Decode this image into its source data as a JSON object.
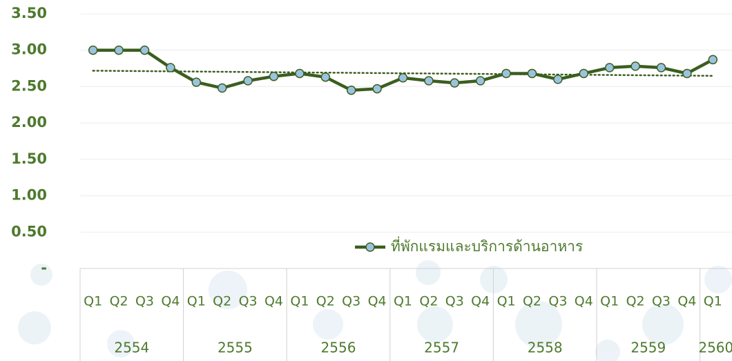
{
  "chart_data": {
    "type": "line",
    "groups": [
      {
        "label": "2554",
        "categories": [
          "Q1",
          "Q2",
          "Q3",
          "Q4"
        ]
      },
      {
        "label": "2555",
        "categories": [
          "Q1",
          "Q2",
          "Q3",
          "Q4"
        ]
      },
      {
        "label": "2556",
        "categories": [
          "Q1",
          "Q2",
          "Q3",
          "Q4"
        ]
      },
      {
        "label": "2557",
        "categories": [
          "Q1",
          "Q2",
          "Q3",
          "Q4"
        ]
      },
      {
        "label": "2558",
        "categories": [
          "Q1",
          "Q2",
          "Q3",
          "Q4"
        ]
      },
      {
        "label": "2559",
        "categories": [
          "Q1",
          "Q2",
          "Q3",
          "Q4"
        ]
      },
      {
        "label": "2560",
        "categories": [
          "Q1"
        ]
      }
    ],
    "series": [
      {
        "name": "ที่พักแรมและบริการด้านอาหาร",
        "color": "#3b5e1f",
        "marker_color": "#9cc3de",
        "values": [
          3.0,
          3.0,
          3.0,
          2.76,
          2.56,
          2.48,
          2.58,
          2.64,
          2.68,
          2.63,
          2.45,
          2.47,
          2.62,
          2.58,
          2.55,
          2.58,
          2.68,
          2.68,
          2.6,
          2.68,
          2.76,
          2.78,
          2.76,
          2.68,
          2.87
        ]
      }
    ],
    "trendline": "linear",
    "ylim": [
      0,
      3.5
    ],
    "yticks": [
      {
        "value": 0,
        "label": "-"
      },
      {
        "value": 0.5,
        "label": "0.50"
      },
      {
        "value": 1,
        "label": "1.00"
      },
      {
        "value": 1.5,
        "label": "1.50"
      },
      {
        "value": 2,
        "label": "2.00"
      },
      {
        "value": 2.5,
        "label": "2.50"
      },
      {
        "value": 3,
        "label": "3.00"
      },
      {
        "value": 3.5,
        "label": "3.50"
      }
    ],
    "grid": true,
    "legend": "bottom-right"
  }
}
